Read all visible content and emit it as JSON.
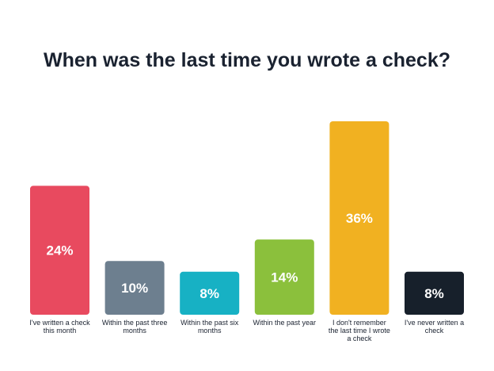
{
  "chart_data": {
    "type": "bar",
    "title": "When was the last time you wrote a check?",
    "categories": [
      [
        "I've written a check",
        "this month"
      ],
      [
        "Within the past three",
        "months"
      ],
      [
        "Within the past six",
        "months"
      ],
      [
        "Within the past year"
      ],
      [
        "I don't remember",
        "the last time I wrote",
        "a check"
      ],
      [
        "I've never written a",
        "check"
      ]
    ],
    "values": [
      24,
      10,
      8,
      14,
      36,
      8
    ],
    "value_labels": [
      "24%",
      "10%",
      "8%",
      "14%",
      "36%",
      "8%"
    ],
    "colors": [
      "#e84a5f",
      "#6d7f8f",
      "#17b1c4",
      "#8bc03c",
      "#f1b121",
      "#17202b"
    ],
    "ylim": [
      0,
      36
    ],
    "grid": false,
    "legend": "none"
  }
}
